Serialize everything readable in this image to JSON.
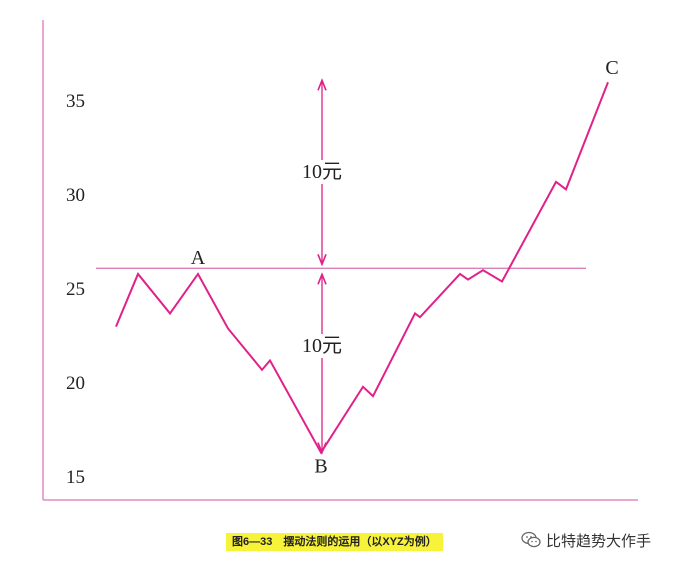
{
  "chart_data": {
    "type": "line",
    "title": "",
    "xlabel": "",
    "ylabel": "",
    "ylim": [
      14,
      40
    ],
    "yticks": [
      15,
      20,
      25,
      30,
      35
    ],
    "ytick_labels": [
      "15",
      "20",
      "25",
      "30",
      "35"
    ],
    "grid": false,
    "legend": "none",
    "series": [
      {
        "values": [
          23,
          25.8,
          23.7,
          25.8,
          22.9,
          20.7,
          21.2,
          16.3,
          19.8,
          19.3,
          23.7,
          23.5,
          25.8,
          25.5,
          26,
          25.4,
          30.7,
          30.3,
          36
        ]
      }
    ],
    "reference_line": {
      "y": 26.1
    },
    "point_labels": [
      {
        "label": "A",
        "index": 3
      },
      {
        "label": "B",
        "index": 7
      },
      {
        "label": "C",
        "index": 18
      }
    ],
    "measurements": [
      {
        "label": "10元",
        "from": 26.1,
        "to": 36.1
      },
      {
        "label": "10元",
        "from": 26.1,
        "to": 16.3
      }
    ],
    "colors": {
      "line": "#e0218a",
      "axes": "#e28cc0",
      "reference": "#d980b8",
      "arrows": "#e0218a"
    }
  },
  "caption": "图6—33　摆动法则的运用（以XYZ为例）",
  "watermark": {
    "text": "比特趋势大作手",
    "icon": "wechat-icon"
  }
}
